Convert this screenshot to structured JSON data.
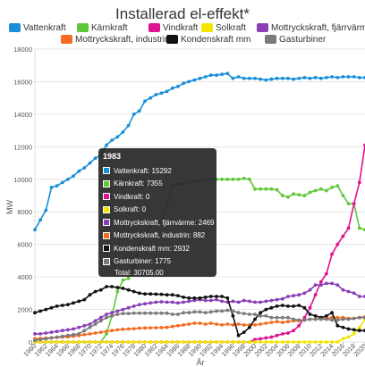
{
  "chart_data": {
    "type": "line",
    "title": "Installerad el-effekt*",
    "xlabel": "År",
    "ylabel": "MW",
    "ylim": [
      0,
      18000
    ],
    "yticks": [
      0,
      2000,
      4000,
      6000,
      8000,
      10000,
      12000,
      14000,
      16000,
      18000
    ],
    "grid": true,
    "legend_position": "top",
    "x": [
      1960,
      1961,
      1962,
      1963,
      1964,
      1965,
      1966,
      1967,
      1968,
      1969,
      1970,
      1971,
      1972,
      1973,
      1974,
      1975,
      1976,
      1977,
      1978,
      1979,
      1980,
      1981,
      1982,
      1983,
      1984,
      1985,
      1986,
      1987,
      1988,
      1989,
      1990,
      1991,
      1992,
      1993,
      1994,
      1995,
      1996,
      1997,
      1998,
      1999,
      2000,
      2001,
      2002,
      2003,
      2004,
      2005,
      2006,
      2007,
      2008,
      2009,
      2010,
      2011,
      2012,
      2013,
      2014,
      2015,
      2016,
      2017,
      2018,
      2019,
      2020
    ],
    "x_tick_labels": [
      "1960",
      "1962",
      "1964",
      "1966",
      "1968",
      "1970",
      "1972",
      "1974",
      "1976",
      "1978",
      "1980",
      "1982",
      "1984",
      "1986",
      "1988",
      "1990",
      "1992",
      "1994",
      "1996",
      "1998",
      "2000",
      "2002",
      "2004",
      "2006",
      "2008",
      "2010",
      "2012",
      "2014",
      "2016",
      "2018",
      "2020"
    ],
    "series": [
      {
        "name": "Vattenkraft",
        "color": "#1a8fd8",
        "values": [
          6900,
          7500,
          8100,
          9500,
          9600,
          9800,
          10000,
          10200,
          10500,
          10700,
          11000,
          11300,
          11500,
          12100,
          12400,
          12600,
          12900,
          13300,
          14000,
          14200,
          14800,
          15000,
          15200,
          15292,
          15400,
          15600,
          15700,
          15900,
          16000,
          16100,
          16200,
          16300,
          16400,
          16400,
          16450,
          16500,
          16200,
          16300,
          16200,
          16200,
          16200,
          16150,
          16100,
          16150,
          16200,
          16200,
          16200,
          16150,
          16200,
          16250,
          16200,
          16250,
          16200,
          16250,
          16300,
          16250,
          16300,
          16300,
          16300,
          16250,
          16250
        ]
      },
      {
        "name": "Kärnkraft",
        "color": "#5ec83a",
        "values": [
          0,
          0,
          0,
          0,
          0,
          0,
          0,
          0,
          0,
          0,
          0,
          0,
          0,
          500,
          1600,
          3100,
          3800,
          3900,
          4600,
          5900,
          6500,
          7100,
          7300,
          7355,
          8400,
          9600,
          9700,
          9700,
          9800,
          9900,
          9900,
          9950,
          10000,
          10000,
          10000,
          10000,
          10000,
          10000,
          10050,
          10000,
          9400,
          9400,
          9400,
          9400,
          9350,
          9000,
          8900,
          9100,
          9050,
          9000,
          9200,
          9300,
          9400,
          9300,
          9500,
          9600,
          9000,
          8500,
          8500,
          7000,
          6900
        ]
      },
      {
        "name": "Vindkraft",
        "color": "#e0128e",
        "values": [
          0,
          0,
          0,
          0,
          0,
          0,
          0,
          0,
          0,
          0,
          0,
          0,
          0,
          0,
          0,
          0,
          0,
          0,
          0,
          0,
          0,
          0,
          0,
          0,
          0,
          0,
          0,
          0,
          0,
          0,
          0,
          0,
          0,
          0,
          0,
          0,
          0,
          0,
          0,
          0,
          150,
          200,
          250,
          300,
          400,
          500,
          550,
          700,
          1000,
          1500,
          2100,
          2900,
          3700,
          4200,
          5400,
          6000,
          6500,
          7000,
          8500,
          9800,
          12100
        ]
      },
      {
        "name": "Solkraft",
        "color": "#f2e500",
        "values": [
          0,
          0,
          0,
          0,
          0,
          0,
          0,
          0,
          0,
          0,
          0,
          0,
          0,
          0,
          0,
          0,
          0,
          0,
          0,
          0,
          0,
          0,
          0,
          0,
          0,
          0,
          0,
          0,
          0,
          0,
          0,
          0,
          0,
          0,
          0,
          0,
          0,
          0,
          0,
          0,
          0,
          0,
          0,
          0,
          0,
          0,
          0,
          0,
          0,
          0,
          0,
          0,
          0,
          0,
          0,
          0,
          200,
          300,
          500,
          900,
          1400
        ]
      },
      {
        "name": "Mottryckskraft, fjärrvärme",
        "color": "#8a3fb8",
        "values": [
          500,
          500,
          550,
          600,
          650,
          700,
          750,
          800,
          900,
          1000,
          1100,
          1300,
          1500,
          1700,
          1800,
          1900,
          2000,
          2100,
          2200,
          2300,
          2350,
          2400,
          2450,
          2469,
          2450,
          2450,
          2400,
          2450,
          2500,
          2550,
          2600,
          2550,
          2550,
          2600,
          2500,
          2450,
          2500,
          2450,
          2550,
          2500,
          2450,
          2450,
          2500,
          2550,
          2600,
          2650,
          2800,
          2850,
          2900,
          3000,
          3200,
          3500,
          3500,
          3600,
          3600,
          3500,
          3200,
          3100,
          3000,
          2800,
          2800
        ]
      },
      {
        "name": "Mottryckskraft, industrin",
        "color": "#f36d21",
        "values": [
          200,
          220,
          240,
          260,
          280,
          300,
          320,
          350,
          400,
          450,
          500,
          550,
          600,
          650,
          700,
          750,
          780,
          800,
          820,
          850,
          860,
          870,
          880,
          882,
          900,
          950,
          1000,
          1050,
          1100,
          1150,
          1150,
          1100,
          1150,
          1100,
          1050,
          1100,
          1050,
          1100,
          1050,
          1050,
          1050,
          1100,
          1150,
          1200,
          1250,
          1200,
          1250,
          1300,
          1300,
          1350,
          1400,
          1400,
          1450,
          1450,
          1500,
          1500,
          1500,
          1450,
          1450,
          1500,
          1550
        ]
      },
      {
        "name": "Kondenskraft mm",
        "color": "#111111",
        "values": [
          1800,
          1900,
          2000,
          2100,
          2200,
          2250,
          2300,
          2400,
          2500,
          2600,
          2900,
          3100,
          3200,
          3400,
          3400,
          3350,
          3300,
          3200,
          3100,
          3000,
          2950,
          2950,
          2940,
          2932,
          2900,
          2900,
          2850,
          2750,
          2700,
          2700,
          2700,
          2750,
          2800,
          2800,
          2800,
          2700,
          1600,
          400,
          600,
          900,
          1400,
          1800,
          2000,
          2100,
          2200,
          2250,
          2200,
          2200,
          2250,
          2100,
          1700,
          1600,
          1500,
          1600,
          1800,
          1000,
          900,
          800,
          750,
          700,
          700
        ]
      },
      {
        "name": "Gasturbiner",
        "color": "#7a7a7a",
        "values": [
          100,
          150,
          200,
          250,
          300,
          350,
          400,
          450,
          500,
          700,
          900,
          1100,
          1300,
          1500,
          1600,
          1700,
          1750,
          1750,
          1770,
          1775,
          1775,
          1775,
          1775,
          1775,
          1775,
          1700,
          1700,
          1800,
          1800,
          1850,
          1850,
          1800,
          1850,
          1900,
          1900,
          1950,
          1900,
          1800,
          1750,
          1700,
          1700,
          1600,
          1600,
          1500,
          1500,
          1500,
          1500,
          1400,
          1350,
          1350,
          1400,
          1400,
          1400,
          1400,
          1350,
          1350,
          1400,
          1400,
          1450,
          1500,
          1500
        ]
      }
    ],
    "tooltip": {
      "title": "1983",
      "rows": [
        {
          "label": "Vattenkraft: 15292",
          "color": "#1a8fd8"
        },
        {
          "label": "Kärnkraft: 7355",
          "color": "#5ec83a"
        },
        {
          "label": "Vindkraft: 0",
          "color": "#e0128e"
        },
        {
          "label": "Solkraft: 0",
          "color": "#f2e500"
        },
        {
          "label": "Mottryckskraft, fjärrvärme: 2469",
          "color": "#8a3fb8"
        },
        {
          "label": "Mottryckskraft, industrin: 882",
          "color": "#f36d21"
        },
        {
          "label": "Kondenskraft mm: 2932",
          "color": "#111111"
        },
        {
          "label": "Gasturbiner: 1775",
          "color": "#7a7a7a"
        }
      ],
      "total": "Total: 30705.00"
    }
  }
}
